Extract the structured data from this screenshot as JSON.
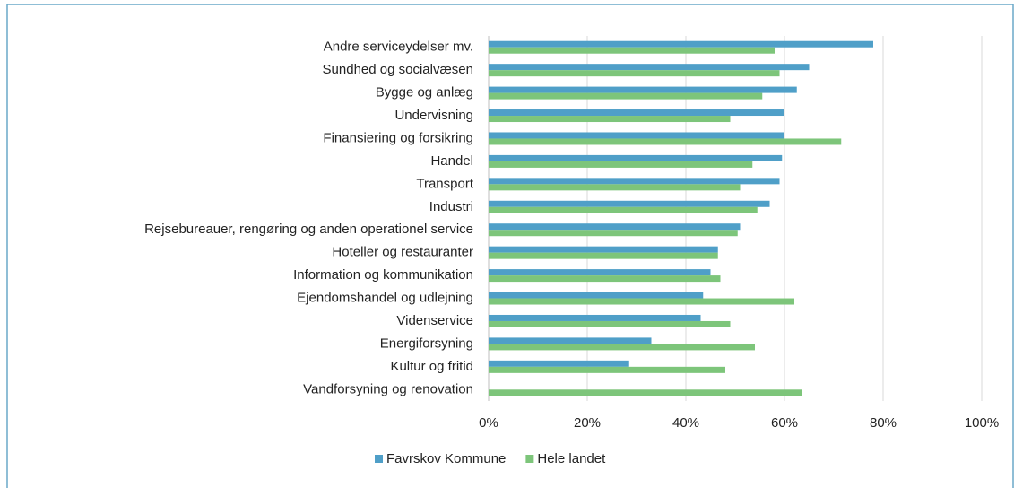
{
  "chart_data": {
    "type": "barh",
    "categories": [
      "Andre serviceydelser  mv.",
      "Sundhed og socialvæsen",
      "Bygge og anlæg",
      "Undervisning",
      "Finansiering og forsikring",
      "Handel",
      "Transport",
      "Industri",
      "Rejsebureauer, rengøring og anden operationel service",
      "Hoteller og restauranter",
      "Information og kommunikation",
      "Ejendomshandel og udlejning",
      "Videnservice",
      "Energiforsyning",
      "Kultur og fritid",
      "Vandforsyning og renovation"
    ],
    "series": [
      {
        "name": "Favrskov Kommune",
        "color": "#4f9fc8",
        "values": [
          78,
          65,
          62.5,
          60,
          60,
          59.5,
          59,
          57,
          51,
          46.5,
          45,
          43.5,
          43,
          33,
          28.5,
          0
        ]
      },
      {
        "name": "Hele landet",
        "color": "#7dc57a",
        "values": [
          58,
          59,
          55.5,
          49,
          71.5,
          53.5,
          51,
          54.5,
          50.5,
          46.5,
          47,
          62,
          49,
          54,
          48,
          63.5
        ]
      }
    ],
    "xlim": [
      0,
      100
    ],
    "xticks": [
      {
        "value": 0,
        "label": "0%"
      },
      {
        "value": 20,
        "label": "20%"
      },
      {
        "value": 40,
        "label": "40%"
      },
      {
        "value": 60,
        "label": "60%"
      },
      {
        "value": 80,
        "label": "80%"
      },
      {
        "value": 100,
        "label": "100%"
      }
    ],
    "grid": true,
    "legend": "bottom"
  }
}
